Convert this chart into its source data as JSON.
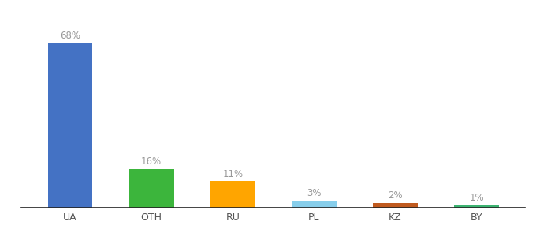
{
  "categories": [
    "UA",
    "OTH",
    "RU",
    "PL",
    "KZ",
    "BY"
  ],
  "values": [
    68,
    16,
    11,
    3,
    2,
    1
  ],
  "labels": [
    "68%",
    "16%",
    "11%",
    "3%",
    "2%",
    "1%"
  ],
  "bar_colors": [
    "#4472C4",
    "#3CB53C",
    "#FFA500",
    "#87CEEB",
    "#C05A1F",
    "#3CB371"
  ],
  "background_color": "#ffffff",
  "ylim": [
    0,
    78
  ],
  "label_fontsize": 8.5,
  "tick_fontsize": 9,
  "label_color": "#999999",
  "tick_color": "#555555"
}
